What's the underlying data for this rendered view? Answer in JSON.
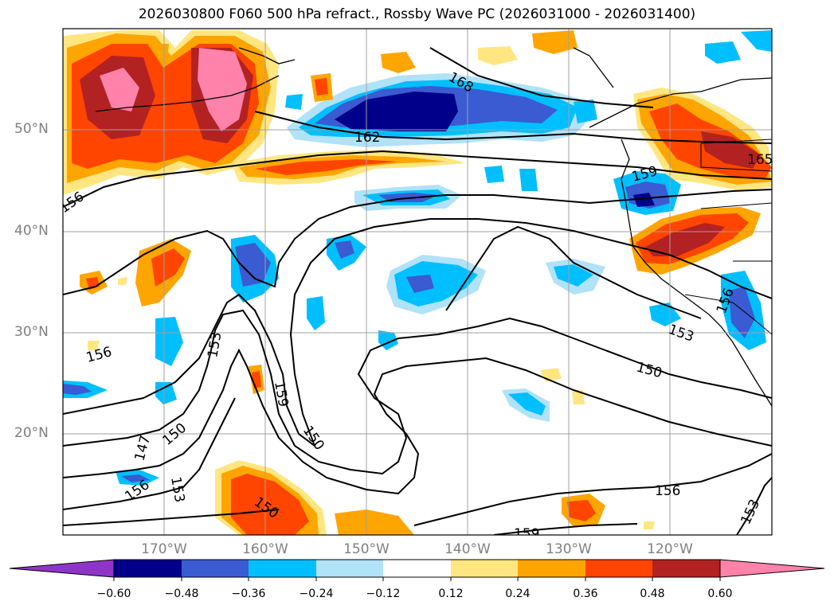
{
  "title": "2026030800 F060 500 hPa refract., Rossby Wave PC (2026031000 - 2026031400)",
  "lat_labels": [
    "50°N",
    "40°N",
    "30°N",
    "20°N"
  ],
  "lon_labels": [
    "170°W",
    "160°W",
    "150°W",
    "140°W",
    "130°W",
    "120°W"
  ],
  "colorbar": {
    "tick_labels": [
      "−0.60",
      "−0.48",
      "−0.36",
      "−0.24",
      "−0.12",
      "0.12",
      "0.24",
      "0.36",
      "0.48",
      "0.60"
    ],
    "colors": [
      "#8e35c9",
      "#00008b",
      "#3a5bd1",
      "#00bfff",
      "#b0e2f8",
      "#ffffff",
      "#ffe680",
      "#ffa500",
      "#ff4500",
      "#b22222",
      "#ff82ab"
    ]
  },
  "contour_labels": [
    "162",
    "168",
    "156",
    "156",
    "153",
    "159",
    "150",
    "147",
    "150",
    "156",
    "153",
    "150",
    "150",
    "156",
    "159",
    "153",
    "153",
    "156",
    "159",
    "165"
  ],
  "fill_colors": {
    "pink": "#ff82ab",
    "darkred": "#b22222",
    "redorange": "#ff4500",
    "orange": "#ffa500",
    "yellow": "#ffe680",
    "lightblue": "#b0e2f8",
    "cyan": "#00bfff",
    "royal": "#3a5bd1",
    "navy": "#00008b"
  }
}
